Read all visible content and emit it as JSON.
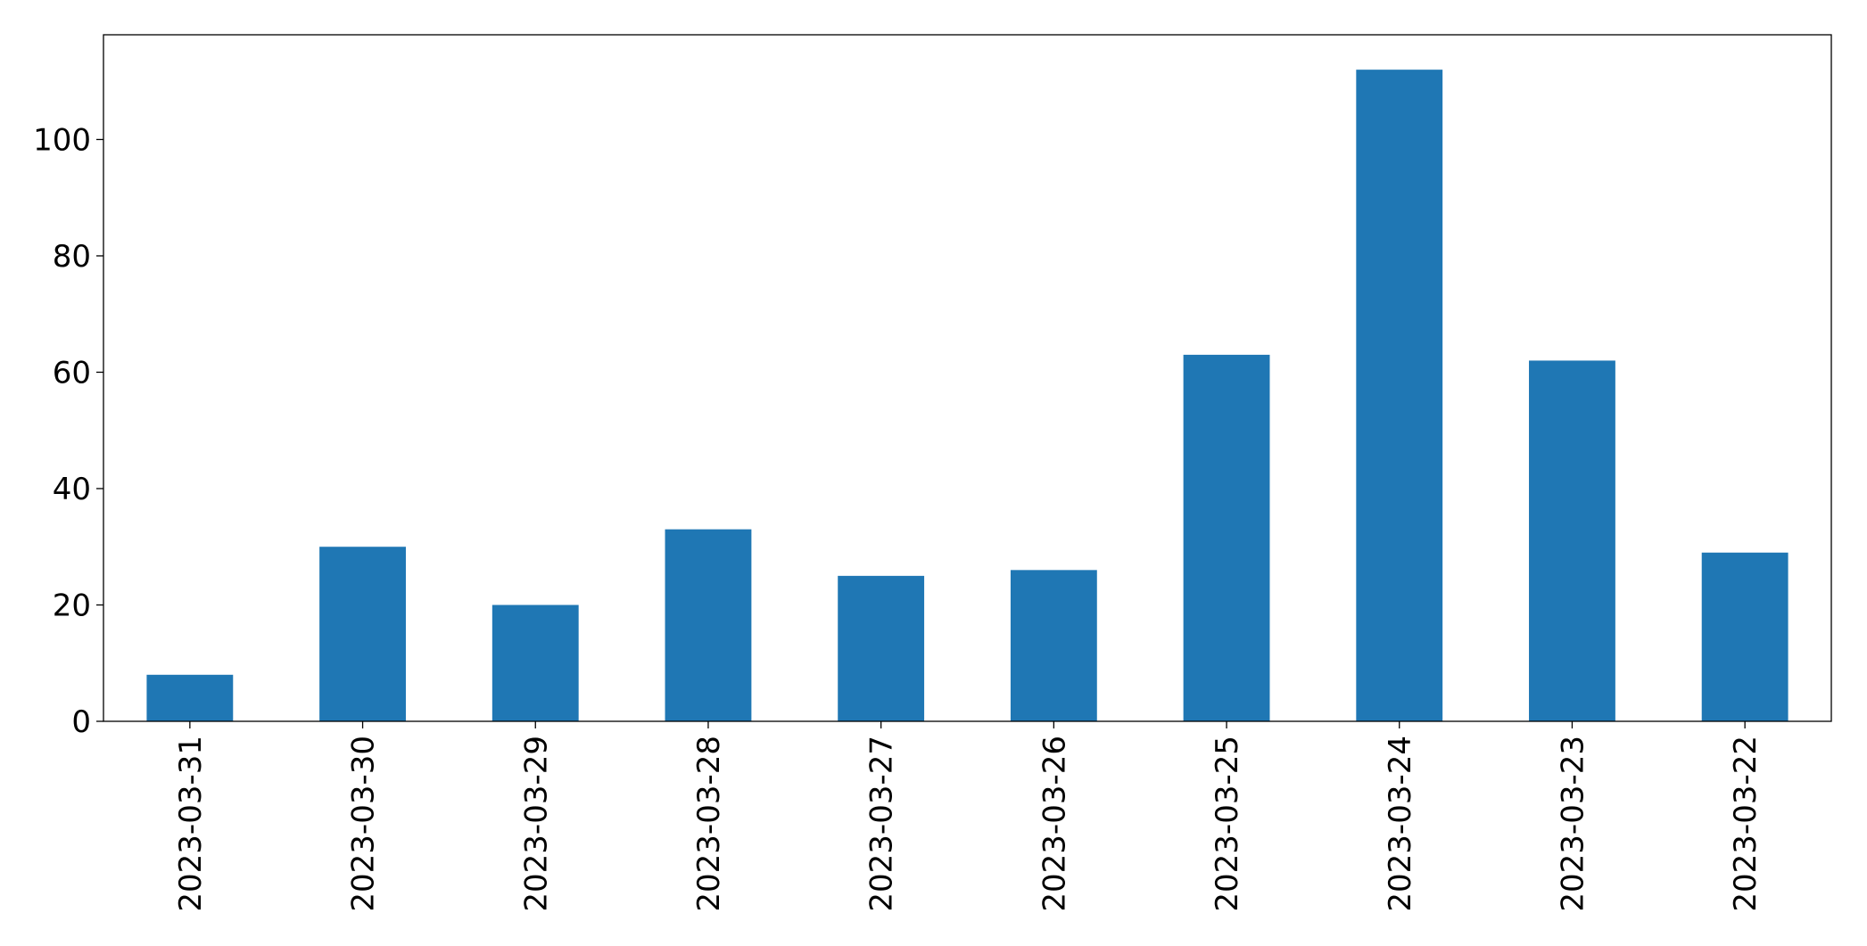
{
  "chart_data": {
    "type": "bar",
    "categories": [
      "2023-03-31",
      "2023-03-30",
      "2023-03-29",
      "2023-03-28",
      "2023-03-27",
      "2023-03-26",
      "2023-03-25",
      "2023-03-24",
      "2023-03-23",
      "2023-03-22"
    ],
    "values": [
      8,
      30,
      20,
      33,
      25,
      26,
      63,
      112,
      62,
      29
    ],
    "color": "#1f77b4",
    "ylim": [
      0,
      118
    ],
    "yticks": [
      0,
      20,
      40,
      60,
      80,
      100
    ],
    "grid": false
  }
}
